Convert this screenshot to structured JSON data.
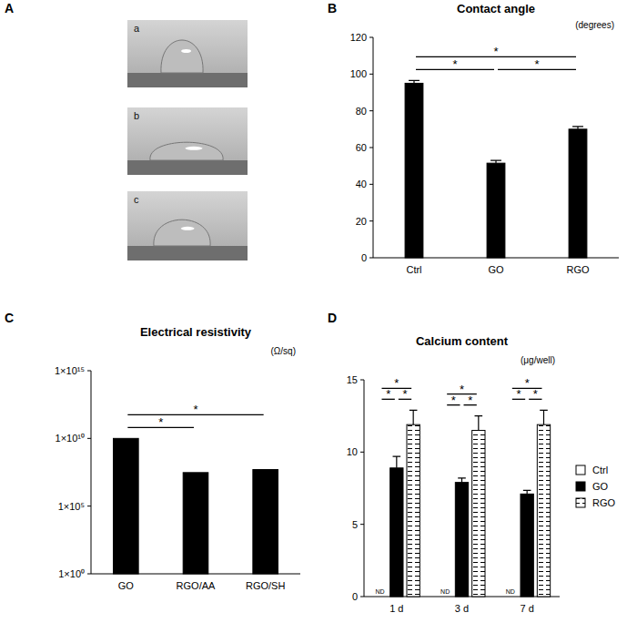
{
  "photos": {
    "panel_label": "A",
    "images": [
      "a",
      "b",
      "c"
    ]
  },
  "chart_data": [
    {
      "panel_label": "B",
      "type": "bar",
      "title": "Contact angle",
      "y_label": "(degrees)",
      "categories": [
        "Ctrl",
        "GO",
        "RGO"
      ],
      "values": [
        95,
        51.5,
        70
      ],
      "errors": [
        1.5,
        1.5,
        1.5
      ],
      "color": "#000000",
      "ylim": [
        0,
        120
      ],
      "yticks": [
        0,
        20,
        40,
        60,
        80,
        100,
        120
      ],
      "significance": [
        {
          "from": 0,
          "to": 1,
          "label": "*"
        },
        {
          "from": 1,
          "to": 2,
          "label": "*"
        },
        {
          "from": 0,
          "to": 2,
          "label": "*"
        }
      ]
    },
    {
      "panel_label": "C",
      "type": "bar",
      "title": "Electrical resistivity",
      "y_label": "(Ω/sq)",
      "categories": [
        "GO",
        "RGO/AA",
        "RGO/SH"
      ],
      "values": [
        10000000000,
        30000000,
        50000000
      ],
      "color": "#000000",
      "log": "y",
      "ylim": [
        1,
        1000000000000000
      ],
      "yticks": [
        {
          "value": 1,
          "label": "1×10⁰"
        },
        {
          "value": 100000,
          "label": "1×10⁵"
        },
        {
          "value": 10000000000,
          "label": "1×10¹⁰"
        },
        {
          "value": 1000000000000000,
          "label": "1×10¹⁵"
        }
      ],
      "significance": [
        {
          "from": 0,
          "to": 1,
          "label": "*"
        },
        {
          "from": 0,
          "to": 2,
          "label": "*"
        }
      ]
    },
    {
      "panel_label": "D",
      "type": "bar",
      "title": "Calcium content",
      "y_label": "(μg/well)",
      "categories": [
        "1 d",
        "3 d",
        "7 d"
      ],
      "series": [
        {
          "name": "Ctrl",
          "color": "#ffffff",
          "values": [
            0,
            0,
            0
          ],
          "value_labels": [
            "ND",
            "ND",
            "ND"
          ]
        },
        {
          "name": "GO",
          "color": "#000000",
          "values": [
            8.9,
            7.9,
            7.1
          ],
          "errors": [
            0.8,
            0.3,
            0.25
          ]
        },
        {
          "name": "RGO",
          "color": "#ffffff",
          "line_style": "dashed",
          "values": [
            11.9,
            11.5,
            11.9
          ],
          "errors": [
            1.0,
            1.0,
            1.0
          ]
        }
      ],
      "ylim": [
        0,
        15
      ],
      "yticks": [
        0,
        5,
        10,
        15
      ],
      "legend": "right",
      "significance": [
        {
          "from": 0,
          "to": 1,
          "label": "*"
        },
        {
          "from": 1,
          "to": 2,
          "label": "*"
        },
        {
          "from": 0,
          "to": 2,
          "label": "*"
        }
      ]
    }
  ]
}
